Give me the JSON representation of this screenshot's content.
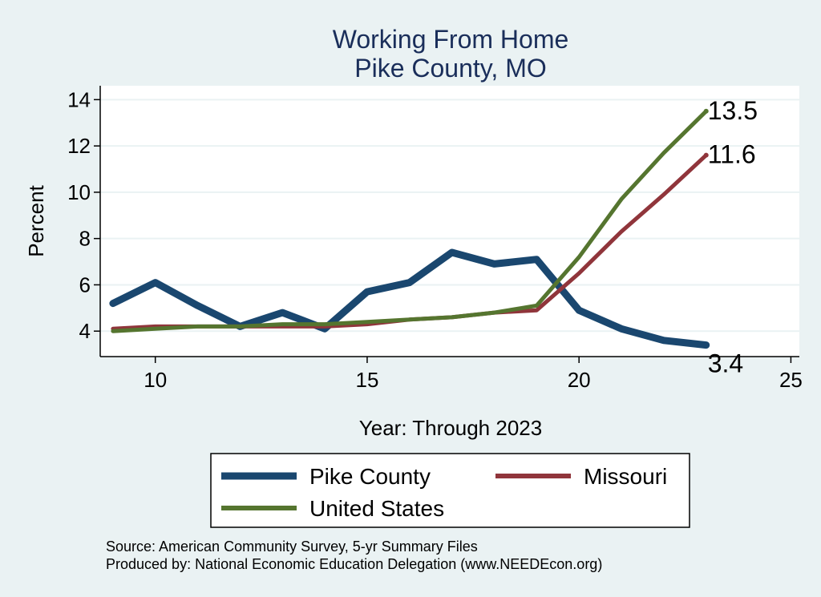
{
  "chart_data": {
    "type": "line",
    "title": [
      "Working From Home",
      "Pike County, MO"
    ],
    "xlabel": "Year: Through 2023",
    "ylabel": "Percent",
    "xlim": [
      8.7,
      25.2
    ],
    "ylim": [
      2.9,
      14.6
    ],
    "xticks": [
      10,
      15,
      20,
      25
    ],
    "yticks": [
      4,
      6,
      8,
      10,
      12,
      14
    ],
    "grid": "horizontal",
    "legend_position": "bottom",
    "series": [
      {
        "name": "Pike County",
        "color": "#1a476f",
        "x": [
          9,
          10,
          11,
          12,
          13,
          14,
          15,
          16,
          17,
          18,
          19,
          20,
          21,
          22,
          23
        ],
        "values": [
          5.2,
          6.1,
          5.1,
          4.2,
          4.8,
          4.1,
          5.7,
          6.1,
          7.4,
          6.9,
          7.1,
          4.9,
          4.1,
          3.6,
          3.4
        ]
      },
      {
        "name": "Missouri",
        "color": "#90353b",
        "x": [
          9,
          10,
          11,
          12,
          13,
          14,
          15,
          16,
          17,
          18,
          19,
          20,
          21,
          22,
          23
        ],
        "values": [
          4.1,
          4.2,
          4.2,
          4.2,
          4.2,
          4.2,
          4.3,
          4.5,
          4.6,
          4.8,
          4.9,
          6.5,
          8.3,
          9.9,
          11.6
        ]
      },
      {
        "name": "United States",
        "color": "#55752f",
        "x": [
          9,
          10,
          11,
          12,
          13,
          14,
          15,
          16,
          17,
          18,
          19,
          20,
          21,
          22,
          23
        ],
        "values": [
          4.0,
          4.1,
          4.2,
          4.2,
          4.3,
          4.3,
          4.4,
          4.5,
          4.6,
          4.8,
          5.1,
          7.2,
          9.7,
          11.7,
          13.5
        ]
      }
    ],
    "end_labels": [
      {
        "series": "United States",
        "text": "13.5"
      },
      {
        "series": "Missouri",
        "text": "11.6"
      },
      {
        "series": "Pike County",
        "text": "3.4"
      }
    ]
  },
  "notes": [
    "Source: American Community Survey, 5-yr Summary Files",
    "Produced by: National Economic Education Delegation (www.NEEDEcon.org)"
  ]
}
